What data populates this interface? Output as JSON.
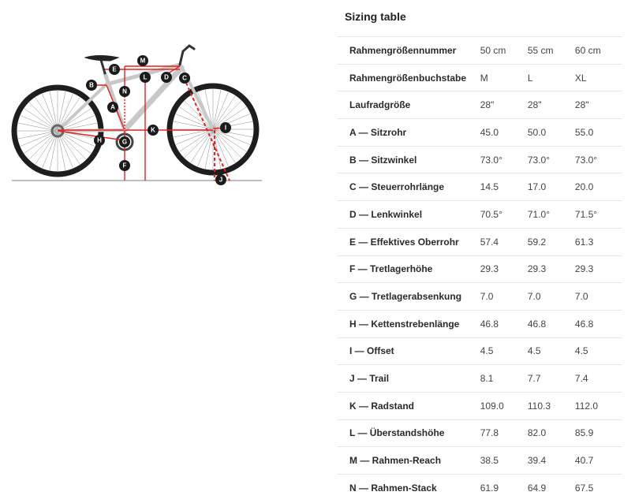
{
  "diagram": {
    "labels": {
      "M": "M",
      "E": "E",
      "L": "L",
      "D": "D",
      "C": "C",
      "B": "B",
      "N": "N",
      "A": "A",
      "K": "K",
      "I": "I",
      "H": "H",
      "G": "G",
      "F": "F",
      "J": "J"
    },
    "colors": {
      "measure": "#e02424",
      "frame": "#c8c8c8",
      "tire": "#1e1e1e",
      "badge": "#1b1b1b"
    }
  },
  "sizing": {
    "title": "Sizing table",
    "rows": [
      {
        "label": "Rahmengrößennummer",
        "values": [
          "50 cm",
          "55 cm",
          "60 cm"
        ]
      },
      {
        "label": "Rahmengrößenbuchstabe",
        "values": [
          "M",
          "L",
          "XL"
        ]
      },
      {
        "label": "Laufradgröße",
        "values": [
          "28\"",
          "28\"",
          "28\""
        ]
      },
      {
        "label": "A — Sitzrohr",
        "values": [
          "45.0",
          "50.0",
          "55.0"
        ]
      },
      {
        "label": "B — Sitzwinkel",
        "values": [
          "73.0°",
          "73.0°",
          "73.0°"
        ]
      },
      {
        "label": "C — Steuerrohrlänge",
        "values": [
          "14.5",
          "17.0",
          "20.0"
        ]
      },
      {
        "label": "D — Lenkwinkel",
        "values": [
          "70.5°",
          "71.0°",
          "71.5°"
        ]
      },
      {
        "label": "E — Effektives Oberrohr",
        "values": [
          "57.4",
          "59.2",
          "61.3"
        ]
      },
      {
        "label": "F — Tretlagerhöhe",
        "values": [
          "29.3",
          "29.3",
          "29.3"
        ]
      },
      {
        "label": "G — Tretlagerabsenkung",
        "values": [
          "7.0",
          "7.0",
          "7.0"
        ]
      },
      {
        "label": "H — Kettenstrebenlänge",
        "values": [
          "46.8",
          "46.8",
          "46.8"
        ]
      },
      {
        "label": "I — Offset",
        "values": [
          "4.5",
          "4.5",
          "4.5"
        ]
      },
      {
        "label": "J — Trail",
        "values": [
          "8.1",
          "7.7",
          "7.4"
        ]
      },
      {
        "label": "K — Radstand",
        "values": [
          "109.0",
          "110.3",
          "112.0"
        ]
      },
      {
        "label": "L — Überstandshöhe",
        "values": [
          "77.8",
          "82.0",
          "85.9"
        ]
      },
      {
        "label": "M — Rahmen-Reach",
        "values": [
          "38.5",
          "39.4",
          "40.7"
        ]
      },
      {
        "label": "N — Rahmen-Stack",
        "values": [
          "61.9",
          "64.9",
          "67.5"
        ]
      }
    ]
  }
}
